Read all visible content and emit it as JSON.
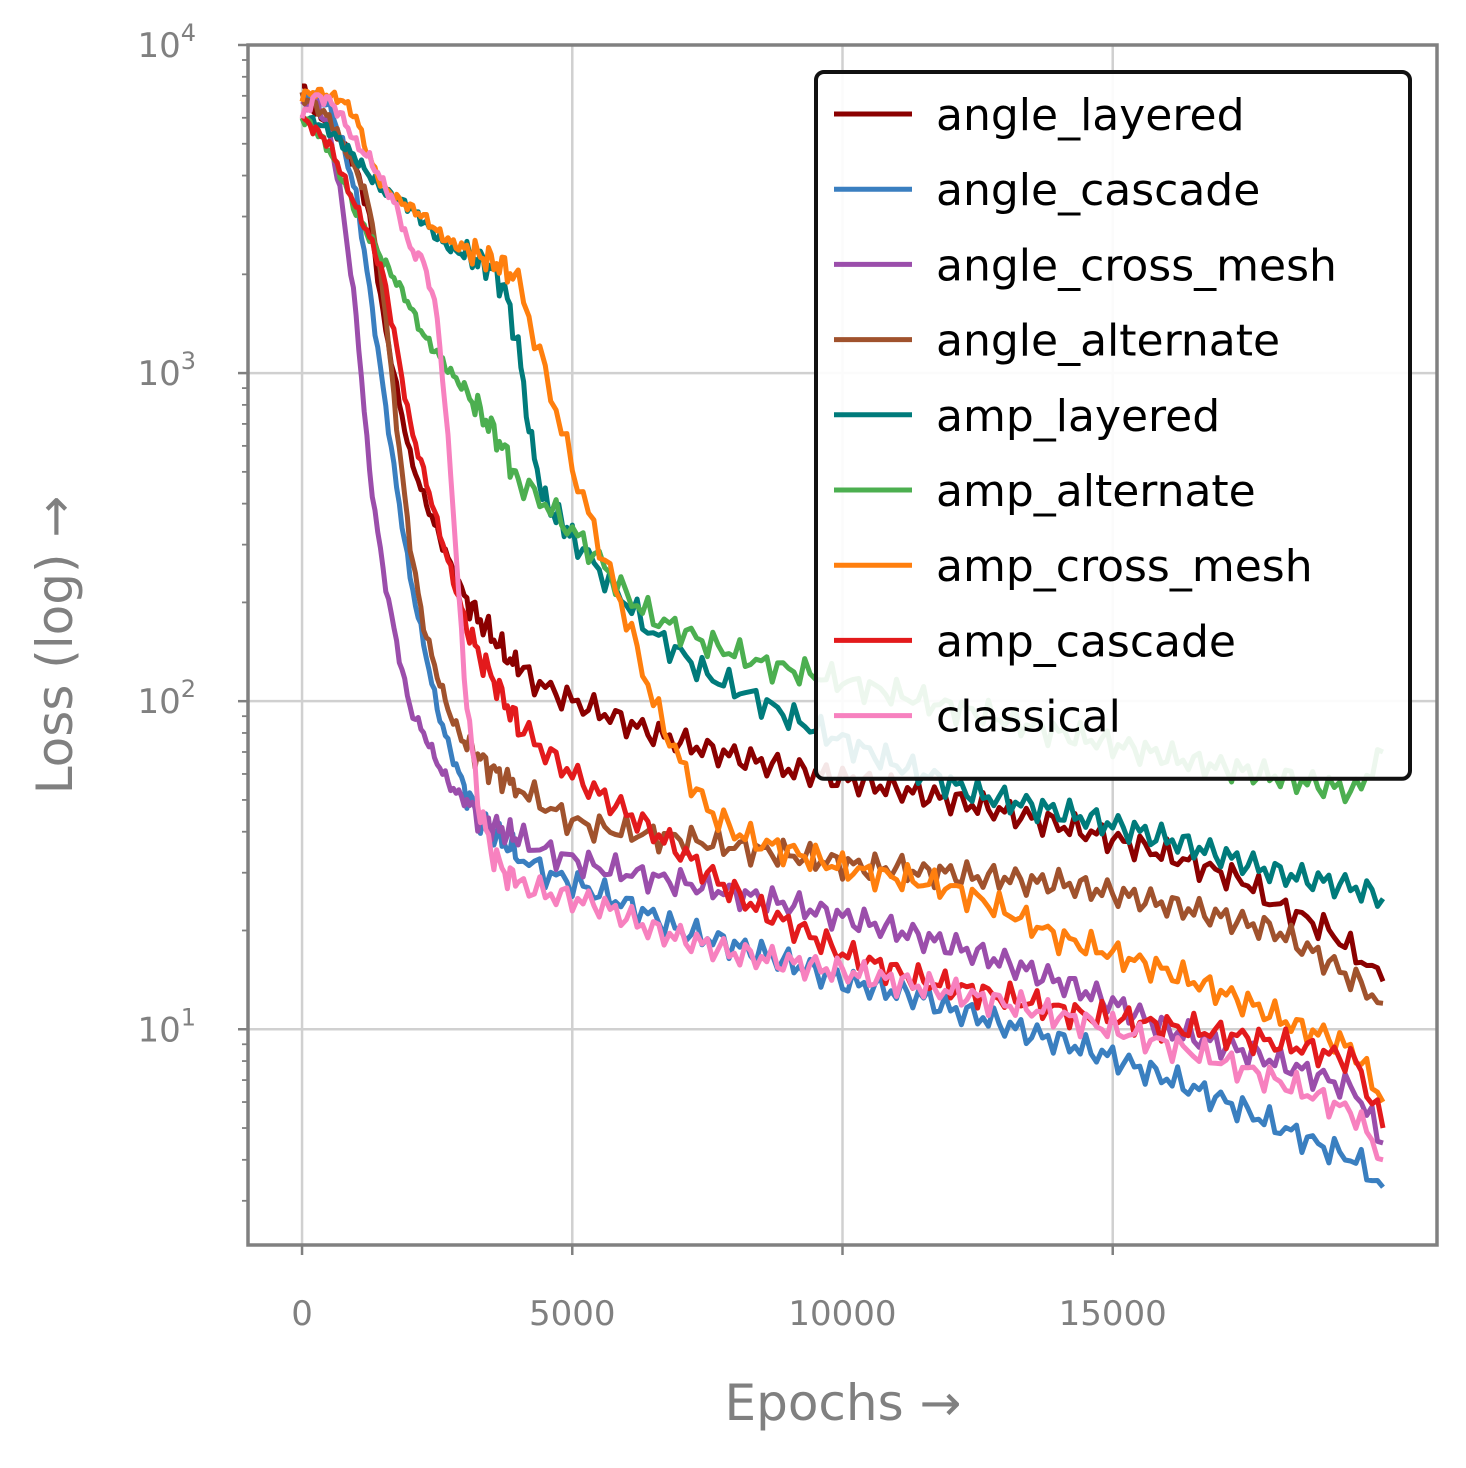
{
  "chart_data": {
    "type": "line",
    "xlabel": "Epochs →",
    "ylabel": "Loss (log) →",
    "yscale": "log",
    "xlim": [
      -1000,
      21000
    ],
    "ylim": [
      2.2,
      10000
    ],
    "xticks": [
      0,
      5000,
      10000,
      15000
    ],
    "xtick_labels": [
      "0",
      "5000",
      "10000",
      "15000"
    ],
    "yticks": [
      10,
      100,
      1000,
      10000
    ],
    "ytick_base": "10",
    "ytick_exponents": [
      "1",
      "2",
      "3",
      "4"
    ],
    "grid": true,
    "legend_position": "top-right",
    "series": [
      {
        "name": "angle_layered",
        "color": "#8B0000",
        "x": [
          0,
          250,
          500,
          750,
          1000,
          1250,
          1500,
          1750,
          2000,
          2250,
          2500,
          2750,
          3000,
          3250,
          3500,
          3750,
          4000,
          4500,
          5000,
          5500,
          6000,
          6500,
          7000,
          7500,
          8000,
          8500,
          9000,
          9500,
          10000,
          10500,
          11000,
          11500,
          12000,
          12500,
          13000,
          13500,
          14000,
          14500,
          15000,
          15500,
          16000,
          16500,
          17000,
          17500,
          18000,
          18500,
          19000,
          19500,
          20000
        ],
        "y": [
          7500,
          6200,
          5800,
          5000,
          4200,
          3000,
          1500,
          900,
          560,
          420,
          330,
          260,
          210,
          180,
          160,
          140,
          125,
          110,
          100,
          93,
          86,
          80,
          75,
          71,
          68,
          65,
          62,
          60,
          58,
          56,
          54,
          52,
          50,
          48,
          46,
          44,
          42,
          40,
          38,
          36,
          34,
          32,
          30,
          28,
          24,
          22,
          20,
          17,
          14
        ]
      },
      {
        "name": "angle_cascade",
        "color": "#3A7FC0",
        "x": [
          0,
          250,
          500,
          750,
          1000,
          1250,
          1500,
          1750,
          2000,
          2250,
          2500,
          2750,
          3000,
          3250,
          3500,
          3750,
          4000,
          4500,
          5000,
          5500,
          6000,
          6500,
          7000,
          7500,
          8000,
          8500,
          9000,
          9500,
          10000,
          10500,
          11000,
          11500,
          12000,
          12500,
          13000,
          13500,
          14000,
          14500,
          15000,
          15500,
          16000,
          16500,
          17000,
          17500,
          18000,
          18500,
          19000,
          19500,
          20000
        ],
        "y": [
          6800,
          6900,
          6600,
          5000,
          3500,
          1800,
          900,
          450,
          240,
          150,
          95,
          70,
          55,
          45,
          40,
          37,
          34,
          30,
          28,
          26,
          24,
          22,
          20,
          19,
          18,
          17,
          16,
          15,
          14,
          13.5,
          13,
          12.5,
          11.5,
          11,
          10.3,
          9.7,
          9.2,
          8.7,
          8.2,
          7.6,
          7.1,
          6.6,
          6.1,
          5.6,
          5.1,
          4.7,
          4.3,
          4.0,
          3.3
        ]
      },
      {
        "name": "angle_cross_mesh",
        "color": "#9B4EAB",
        "x": [
          0,
          250,
          500,
          750,
          1000,
          1250,
          1500,
          1750,
          2000,
          2250,
          2500,
          2750,
          3000,
          3250,
          3500,
          3750,
          4000,
          4500,
          5000,
          5500,
          6000,
          6500,
          7000,
          7500,
          8000,
          8500,
          9000,
          9500,
          10000,
          10500,
          11000,
          11500,
          12000,
          12500,
          13000,
          13500,
          14000,
          14500,
          15000,
          15500,
          16000,
          16500,
          17000,
          17500,
          18000,
          18500,
          19000,
          19500,
          20000
        ],
        "y": [
          6500,
          6800,
          5500,
          3200,
          1500,
          500,
          250,
          150,
          95,
          80,
          65,
          55,
          50,
          45,
          42,
          40,
          38,
          35,
          33,
          31,
          30,
          29,
          28,
          27,
          26,
          25,
          24,
          23,
          22,
          21,
          20,
          19,
          18,
          17,
          16,
          15,
          14,
          13,
          12,
          11,
          10,
          9.5,
          9,
          8.5,
          8,
          7.5,
          7,
          6.5,
          4.5
        ]
      },
      {
        "name": "angle_alternate",
        "color": "#A0522D",
        "x": [
          0,
          250,
          500,
          750,
          1000,
          1250,
          1500,
          1750,
          2000,
          2250,
          2500,
          2750,
          3000,
          3250,
          3500,
          3750,
          4000,
          4500,
          5000,
          5500,
          6000,
          6500,
          7000,
          7500,
          8000,
          8500,
          9000,
          9500,
          10000,
          10500,
          11000,
          11500,
          12000,
          12500,
          13000,
          13500,
          14000,
          14500,
          15000,
          15500,
          16000,
          16500,
          17000,
          17500,
          18000,
          18500,
          19000,
          19500,
          20000
        ],
        "y": [
          7000,
          6500,
          6000,
          5000,
          4200,
          3200,
          1800,
          700,
          300,
          170,
          120,
          90,
          75,
          68,
          62,
          58,
          55,
          48,
          43,
          41,
          40,
          39,
          38,
          37,
          36,
          35,
          34,
          33,
          32,
          31,
          31,
          30,
          30,
          29,
          29,
          28,
          28,
          27,
          26,
          25,
          24,
          23,
          22,
          21,
          20,
          18,
          16,
          14,
          12
        ]
      },
      {
        "name": "amp_layered",
        "color": "#007B7B",
        "x": [
          0,
          250,
          500,
          750,
          1000,
          1250,
          1500,
          1750,
          2000,
          2250,
          2500,
          2750,
          3000,
          3250,
          3500,
          3750,
          4000,
          4250,
          4500,
          4750,
          5000,
          5500,
          6000,
          6500,
          7000,
          7500,
          8000,
          8500,
          9000,
          9500,
          10000,
          10500,
          11000,
          11500,
          12000,
          12500,
          13000,
          13500,
          14000,
          14500,
          15000,
          15500,
          16000,
          16500,
          17000,
          17500,
          18000,
          18500,
          19000,
          19500,
          20000
        ],
        "y": [
          6000,
          5800,
          5500,
          5000,
          4500,
          4000,
          3600,
          3400,
          3200,
          2900,
          2600,
          2400,
          2300,
          2200,
          2100,
          1800,
          1200,
          600,
          400,
          360,
          320,
          250,
          200,
          160,
          140,
          120,
          110,
          100,
          90,
          82,
          76,
          70,
          64,
          60,
          56,
          52,
          50,
          48,
          46,
          44,
          42,
          40,
          38,
          36,
          34,
          32,
          30,
          29,
          28,
          27,
          25
        ]
      },
      {
        "name": "amp_alternate",
        "color": "#4CAF50",
        "x": [
          0,
          250,
          500,
          750,
          1000,
          1250,
          1500,
          1750,
          2000,
          2250,
          2500,
          2750,
          3000,
          3250,
          3500,
          3750,
          4000,
          4500,
          5000,
          5500,
          6000,
          6500,
          7000,
          7500,
          8000,
          8500,
          9000,
          9500,
          10000,
          10500,
          11000,
          11500,
          12000,
          12500,
          13000,
          13500,
          14000,
          14500,
          15000,
          15500,
          16000,
          16500,
          17000,
          17500,
          18000,
          18500,
          19000,
          19500,
          20000
        ],
        "y": [
          6000,
          5500,
          4800,
          3900,
          3100,
          2600,
          2200,
          1900,
          1600,
          1300,
          1150,
          1000,
          900,
          780,
          680,
          580,
          470,
          400,
          330,
          270,
          210,
          180,
          165,
          150,
          140,
          130,
          125,
          120,
          115,
          110,
          105,
          100,
          96,
          92,
          88,
          84,
          80,
          77,
          74,
          71,
          68,
          65,
          63,
          61,
          59,
          57,
          55,
          53,
          70
        ]
      },
      {
        "name": "amp_cross_mesh",
        "color": "#FF7F0E",
        "x": [
          0,
          250,
          500,
          750,
          1000,
          1250,
          1500,
          1750,
          2000,
          2250,
          2500,
          2750,
          3000,
          3250,
          3500,
          3750,
          4000,
          4500,
          5000,
          5500,
          6000,
          6500,
          7000,
          7500,
          8000,
          8500,
          9000,
          9500,
          10000,
          10500,
          11000,
          11500,
          12000,
          12500,
          13000,
          13500,
          14000,
          14500,
          15000,
          15500,
          16000,
          16500,
          17000,
          17500,
          18000,
          18500,
          19000,
          19500,
          20000
        ],
        "y": [
          7000,
          7200,
          7000,
          6800,
          6000,
          4500,
          3700,
          3400,
          3200,
          3000,
          2700,
          2500,
          2400,
          2300,
          2200,
          2100,
          1900,
          1000,
          520,
          300,
          180,
          100,
          65,
          47,
          40,
          37,
          35,
          33,
          31,
          30,
          29,
          28,
          27,
          25,
          23,
          21,
          19,
          18,
          17,
          16,
          15,
          14,
          13,
          12,
          11,
          10,
          9.5,
          8.5,
          6
        ]
      },
      {
        "name": "amp_cascade",
        "color": "#E31A1C",
        "x": [
          0,
          250,
          500,
          750,
          1000,
          1250,
          1500,
          1750,
          2000,
          2250,
          2500,
          2750,
          3000,
          3250,
          3500,
          3750,
          4000,
          4500,
          5000,
          5500,
          6000,
          6500,
          7000,
          7500,
          8000,
          8500,
          9000,
          9500,
          10000,
          10500,
          11000,
          11500,
          12000,
          12500,
          13000,
          13500,
          14000,
          14500,
          15000,
          15500,
          16000,
          16500,
          17000,
          17500,
          18000,
          18500,
          19000,
          19500,
          20000
        ],
        "y": [
          6000,
          5500,
          5000,
          4000,
          3200,
          2600,
          2000,
          1200,
          700,
          500,
          350,
          250,
          180,
          140,
          120,
          100,
          85,
          70,
          60,
          52,
          46,
          40,
          35,
          30,
          26,
          23,
          21,
          19,
          17,
          16,
          15,
          14,
          13.5,
          13,
          12.5,
          12,
          11.5,
          11,
          10.8,
          10.5,
          10.2,
          10,
          9.7,
          9.4,
          9.1,
          8.8,
          8.4,
          8,
          5
        ]
      },
      {
        "name": "classical",
        "color": "#F781BF",
        "x": [
          0,
          250,
          500,
          750,
          1000,
          1250,
          1500,
          1750,
          2000,
          2250,
          2500,
          2750,
          3000,
          3250,
          3500,
          3750,
          4000,
          4500,
          5000,
          5500,
          6000,
          6500,
          7000,
          7500,
          8000,
          8500,
          9000,
          9500,
          10000,
          10500,
          11000,
          11500,
          12000,
          12500,
          13000,
          13500,
          14000,
          14500,
          15000,
          15500,
          16000,
          16500,
          17000,
          17500,
          18000,
          18500,
          19000,
          19500,
          20000
        ],
        "y": [
          6000,
          7000,
          6800,
          6000,
          5000,
          4500,
          3800,
          3200,
          2400,
          2200,
          1500,
          500,
          120,
          50,
          35,
          30,
          28,
          26,
          25,
          24,
          22,
          20,
          19,
          18,
          17,
          16.5,
          16,
          15.5,
          15,
          14.5,
          14,
          13.5,
          13,
          12.5,
          12,
          11.5,
          11,
          10.5,
          10,
          9.5,
          9,
          8.5,
          8,
          7.5,
          7,
          6.5,
          6,
          5.5,
          4
        ]
      }
    ]
  }
}
